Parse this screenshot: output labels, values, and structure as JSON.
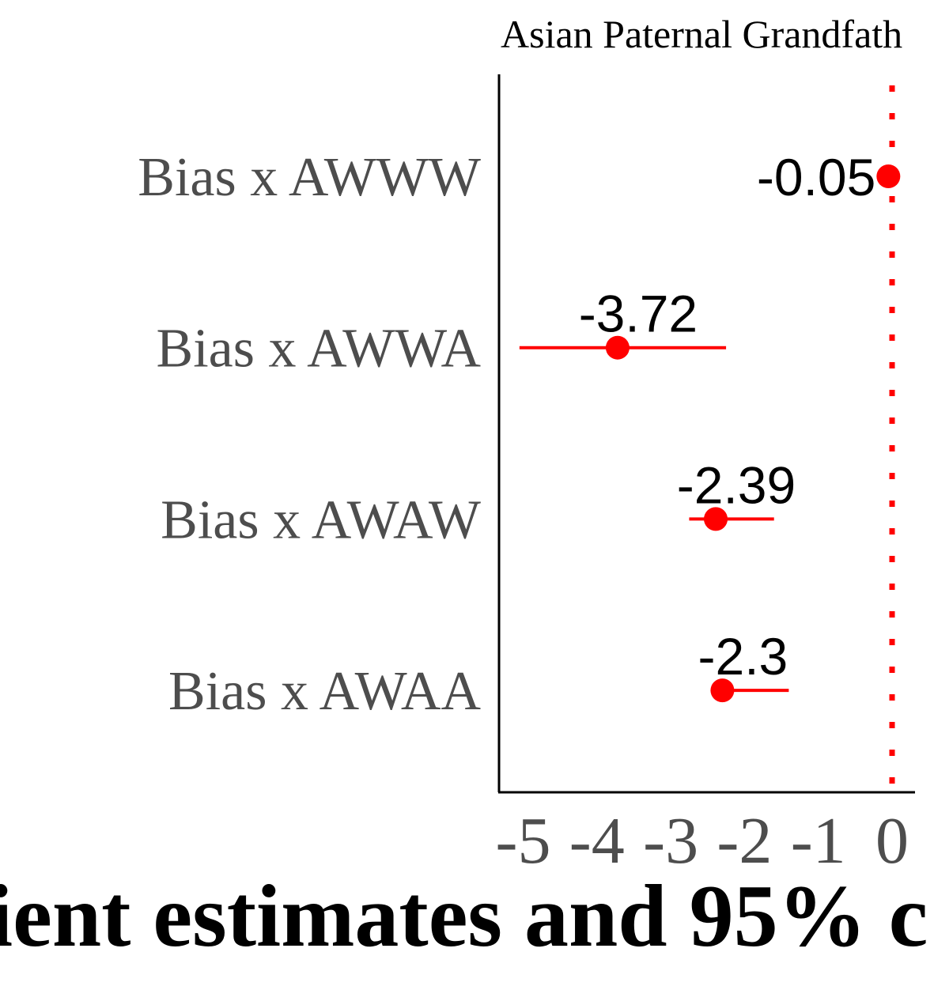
{
  "chart_data": {
    "type": "scatter",
    "subtype": "coefficient-plot",
    "title": "Asian Paternal Grandfath",
    "xlabel": "ient estimates and 95% c",
    "ylabel": "",
    "xlim": [
      -5.3,
      0.3
    ],
    "x_ticks": [
      -5,
      -4,
      -3,
      -2,
      -1,
      0
    ],
    "x_tick_labels": [
      "-5",
      "-4",
      "-3",
      "-2",
      "-1",
      "0"
    ],
    "reference_line": {
      "x": 0,
      "style": "dotted",
      "color": "#ff0000"
    },
    "grid": false,
    "categories": [
      "Bias x AWWW",
      "Bias x AWWA",
      "Bias x AWAW",
      "Bias x AWAA"
    ],
    "series": [
      {
        "estimates": [
          -0.05,
          -3.72,
          -2.39,
          -2.3
        ],
        "ci_lower": [
          -0.05,
          -5.05,
          -2.75,
          -2.4
        ],
        "ci_upper": [
          -0.05,
          -2.25,
          -1.6,
          -1.4
        ],
        "labels": [
          "-0.05",
          "-3.72",
          "-2.39",
          "-2.3"
        ]
      }
    ],
    "colors": {
      "point": "#ff0000",
      "axis": "#000000",
      "category_text": "#4d4d4d"
    }
  }
}
